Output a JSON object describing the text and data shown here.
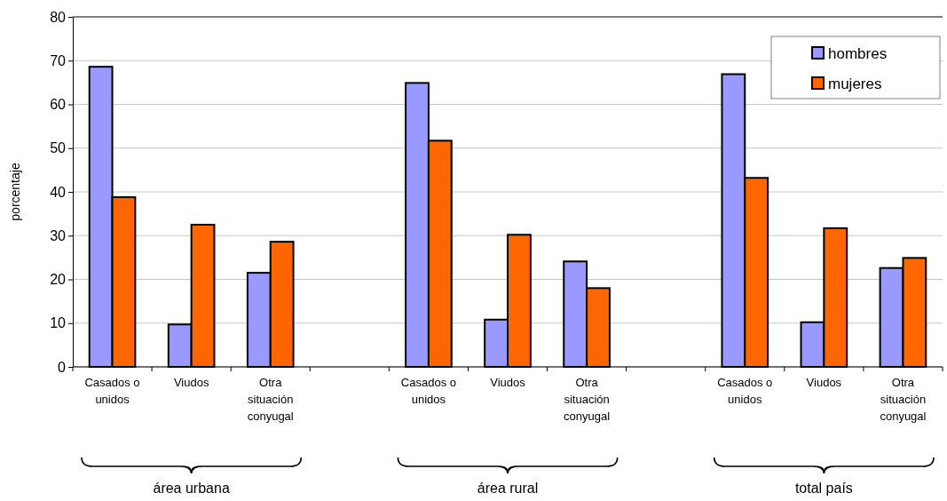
{
  "chart_data": {
    "type": "bar",
    "ylabel": "porcentaje",
    "categories": [
      "Casados o unidos",
      "Viudos",
      "Otra situación conyugal",
      null,
      "Casados o unidos",
      "Viudos",
      "Otra situación conyugal",
      null,
      "Casados o unidos",
      "Viudos",
      "Otra situación conyugal"
    ],
    "series": [
      {
        "name": "hombres",
        "color": "#9999ff",
        "values": [
          68.6,
          9.7,
          21.5,
          null,
          64.9,
          10.8,
          24.1,
          null,
          66.9,
          10.2,
          22.6
        ]
      },
      {
        "name": "mujeres",
        "color": "#ff6600",
        "values": [
          38.8,
          32.5,
          28.6,
          null,
          51.7,
          30.2,
          18.0,
          null,
          43.2,
          31.7,
          24.9
        ]
      }
    ],
    "ylim": [
      0,
      80
    ],
    "yticks": [
      0,
      10,
      20,
      30,
      40,
      50,
      60,
      70,
      80
    ],
    "grid": "y",
    "legend": "top right",
    "annotations": [
      "área urbana",
      "área rural",
      "total país"
    ]
  }
}
